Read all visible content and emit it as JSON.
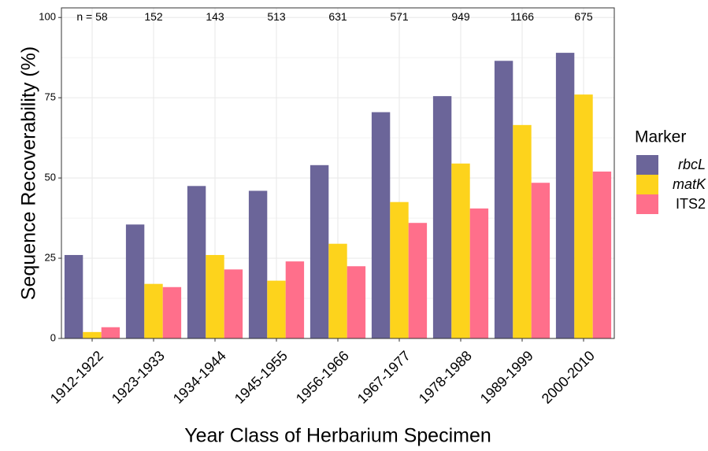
{
  "chart_data": {
    "type": "bar",
    "x_label": "Year Class of Herbarium Specimen",
    "y_label": "Sequence Recoverability (%)",
    "categories": [
      "1912-1922",
      "1923-1933",
      "1934-1944",
      "1945-1955",
      "1956-1966",
      "1967-1977",
      "1978-1988",
      "1989-1999",
      "2000-2010"
    ],
    "annotations": [
      "n = 58",
      "152",
      "143",
      "513",
      "631",
      "571",
      "949",
      "1166",
      "675"
    ],
    "legend_title": "Marker",
    "legend_position": "right",
    "series": [
      {
        "name": "rbcL",
        "color": "#6b6599",
        "italic": true,
        "values": [
          26,
          35.5,
          47.5,
          46,
          54,
          70.5,
          75.5,
          86.5,
          89
        ]
      },
      {
        "name": "matK",
        "color": "#fdd31c",
        "italic": true,
        "values": [
          2,
          17,
          26,
          18,
          29.5,
          42.5,
          54.5,
          66.5,
          76
        ]
      },
      {
        "name": "ITS2",
        "color": "#ff6f8b",
        "italic": false,
        "values": [
          3.5,
          16,
          21.5,
          24,
          22.5,
          36,
          40.5,
          48.5,
          52
        ]
      }
    ],
    "ylim": [
      0,
      103
    ],
    "yticks": [
      0,
      25,
      50,
      75,
      100
    ],
    "grid": true
  }
}
